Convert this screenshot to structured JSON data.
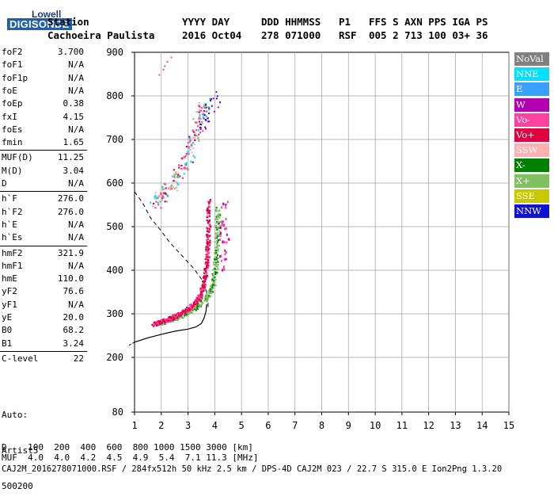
{
  "logo": {
    "line1": "Lowell",
    "line2": "DIGISONDE"
  },
  "header": {
    "row1": [
      "Station",
      "YYYY DAY",
      "DDD HHMMSS",
      "P1",
      "FFS S AXN PPS IGA PS"
    ],
    "row2": [
      "Cachoeira Paulista",
      "2016 Oct04",
      "278 071000",
      "RSF",
      "005 2 713 100 03+ 36"
    ]
  },
  "params": [
    {
      "name": "foF2",
      "value": "3.700"
    },
    {
      "name": "foF1",
      "value": "N/A"
    },
    {
      "name": "foF1p",
      "value": "N/A"
    },
    {
      "name": "foE",
      "value": "N/A"
    },
    {
      "name": "foEp",
      "value": "0.38"
    },
    {
      "name": "fxI",
      "value": "4.15"
    },
    {
      "name": "foEs",
      "value": "N/A"
    },
    {
      "name": "fmin",
      "value": "1.65"
    },
    {
      "name": "MUF(D)",
      "value": "11.25"
    },
    {
      "name": "M(D)",
      "value": "3.04"
    },
    {
      "name": "D",
      "value": "N/A"
    },
    {
      "name": "h`F",
      "value": "276.0"
    },
    {
      "name": "h`F2",
      "value": "276.0"
    },
    {
      "name": "h`E",
      "value": "N/A"
    },
    {
      "name": "h`Es",
      "value": "N/A"
    },
    {
      "name": "hmF2",
      "value": "321.9"
    },
    {
      "name": "hmF1",
      "value": "N/A"
    },
    {
      "name": "hmE",
      "value": "110.0"
    },
    {
      "name": "yF2",
      "value": "76.6"
    },
    {
      "name": "yF1",
      "value": "N/A"
    },
    {
      "name": "yE",
      "value": "20.0"
    },
    {
      "name": "B0",
      "value": "68.2"
    },
    {
      "name": "B1",
      "value": "3.24"
    },
    {
      "name": "C-level",
      "value": "22"
    }
  ],
  "autoscale": {
    "line1": "Auto:",
    "line2": "Artist5",
    "line3": "500200"
  },
  "legend": [
    {
      "label": "NoVal",
      "color": "#808080"
    },
    {
      "label": "NNE",
      "color": "#00e0ff"
    },
    {
      "label": "E",
      "color": "#3aa0ff"
    },
    {
      "label": "W",
      "color": "#b000b0"
    },
    {
      "label": "Vo-",
      "color": "#ff40a0"
    },
    {
      "label": "Vo+",
      "color": "#e00040"
    },
    {
      "label": "SSW",
      "color": "#ffb0b0"
    },
    {
      "label": "X-",
      "color": "#008000"
    },
    {
      "label": "X+",
      "color": "#80c060"
    },
    {
      "label": "SSE",
      "color": "#c8c800"
    },
    {
      "label": "NNW",
      "color": "#1010d0"
    }
  ],
  "footer": {
    "row_d": "D    100  200  400  600  800 1000 1500 3000 [km]",
    "row_muf": "MUF  4.0  4.0  4.2  4.5  4.9  5.4  7.1 11.3 [MHz]",
    "file_line": "CAJ2M_2016278071000.RSF / 284fx512h 50 kHz 2.5 km / DPS-4D CAJ2M 023 / 22.7 S 315.0 E Ion2Png 1.3.20"
  },
  "chart_data": {
    "type": "scatter",
    "xlim": [
      1,
      15
    ],
    "ylim": [
      80,
      900
    ],
    "x_ticks": [
      1,
      2,
      3,
      4,
      5,
      6,
      7,
      8,
      9,
      10,
      11,
      12,
      13,
      14,
      15
    ],
    "y_ticks": [
      80,
      200,
      300,
      400,
      500,
      600,
      700,
      800,
      900
    ],
    "grid": true,
    "ordinary_trace": [
      [
        1.7,
        277
      ],
      [
        1.9,
        281
      ],
      [
        2.1,
        285
      ],
      [
        2.3,
        290
      ],
      [
        2.5,
        296
      ],
      [
        2.7,
        302
      ],
      [
        2.9,
        309
      ],
      [
        3.1,
        318
      ],
      [
        3.3,
        330
      ],
      [
        3.45,
        345
      ],
      [
        3.55,
        365
      ],
      [
        3.62,
        390
      ],
      [
        3.68,
        420
      ],
      [
        3.72,
        460
      ],
      [
        3.74,
        510
      ],
      [
        3.75,
        560
      ]
    ],
    "extraordinary_trace": [
      [
        1.9,
        280
      ],
      [
        2.2,
        285
      ],
      [
        2.5,
        292
      ],
      [
        2.8,
        300
      ],
      [
        3.1,
        310
      ],
      [
        3.4,
        323
      ],
      [
        3.7,
        340
      ],
      [
        3.9,
        365
      ],
      [
        4.0,
        400
      ],
      [
        4.05,
        450
      ],
      [
        4.08,
        500
      ],
      [
        4.1,
        540
      ]
    ],
    "second_hop_trace": [
      [
        1.7,
        555
      ],
      [
        2.0,
        570
      ],
      [
        2.3,
        590
      ],
      [
        2.6,
        615
      ],
      [
        2.9,
        650
      ],
      [
        3.1,
        685
      ],
      [
        3.3,
        720
      ],
      [
        3.5,
        760
      ],
      [
        3.6,
        780
      ]
    ],
    "oblique_echoes": [
      [
        4.2,
        480
      ],
      [
        4.25,
        520
      ],
      [
        4.3,
        460
      ],
      [
        4.35,
        510
      ],
      [
        4.4,
        450
      ],
      [
        4.2,
        430
      ],
      [
        4.35,
        420
      ],
      [
        4.4,
        550
      ],
      [
        4.3,
        400
      ],
      [
        4.2,
        500
      ],
      [
        4.28,
        545
      ],
      [
        4.45,
        470
      ],
      [
        4.38,
        490
      ]
    ],
    "high_returns": [
      [
        1.9,
        850
      ],
      [
        2.1,
        870
      ],
      [
        2.2,
        880
      ],
      [
        2.35,
        890
      ],
      [
        2.05,
        862
      ]
    ],
    "upper_second_hop": [
      [
        3.5,
        745
      ],
      [
        3.7,
        760
      ],
      [
        3.9,
        775
      ],
      [
        4.1,
        790
      ],
      [
        3.65,
        735
      ]
    ],
    "true_height_profile": [
      [
        1.0,
        235
      ],
      [
        1.5,
        245
      ],
      [
        2.0,
        253
      ],
      [
        2.5,
        260
      ],
      [
        3.0,
        265
      ],
      [
        3.3,
        270
      ],
      [
        3.5,
        278
      ],
      [
        3.6,
        290
      ],
      [
        3.67,
        305
      ],
      [
        3.7,
        322
      ]
    ],
    "model_dashed_curve": [
      [
        1.0,
        580
      ],
      [
        1.3,
        555
      ],
      [
        1.6,
        520
      ],
      [
        2.0,
        490
      ],
      [
        2.3,
        465
      ],
      [
        2.6,
        445
      ],
      [
        2.9,
        425
      ],
      [
        3.2,
        405
      ],
      [
        3.5,
        380
      ],
      [
        3.7,
        350
      ],
      [
        3.75,
        330
      ],
      [
        3.75,
        310
      ]
    ]
  }
}
